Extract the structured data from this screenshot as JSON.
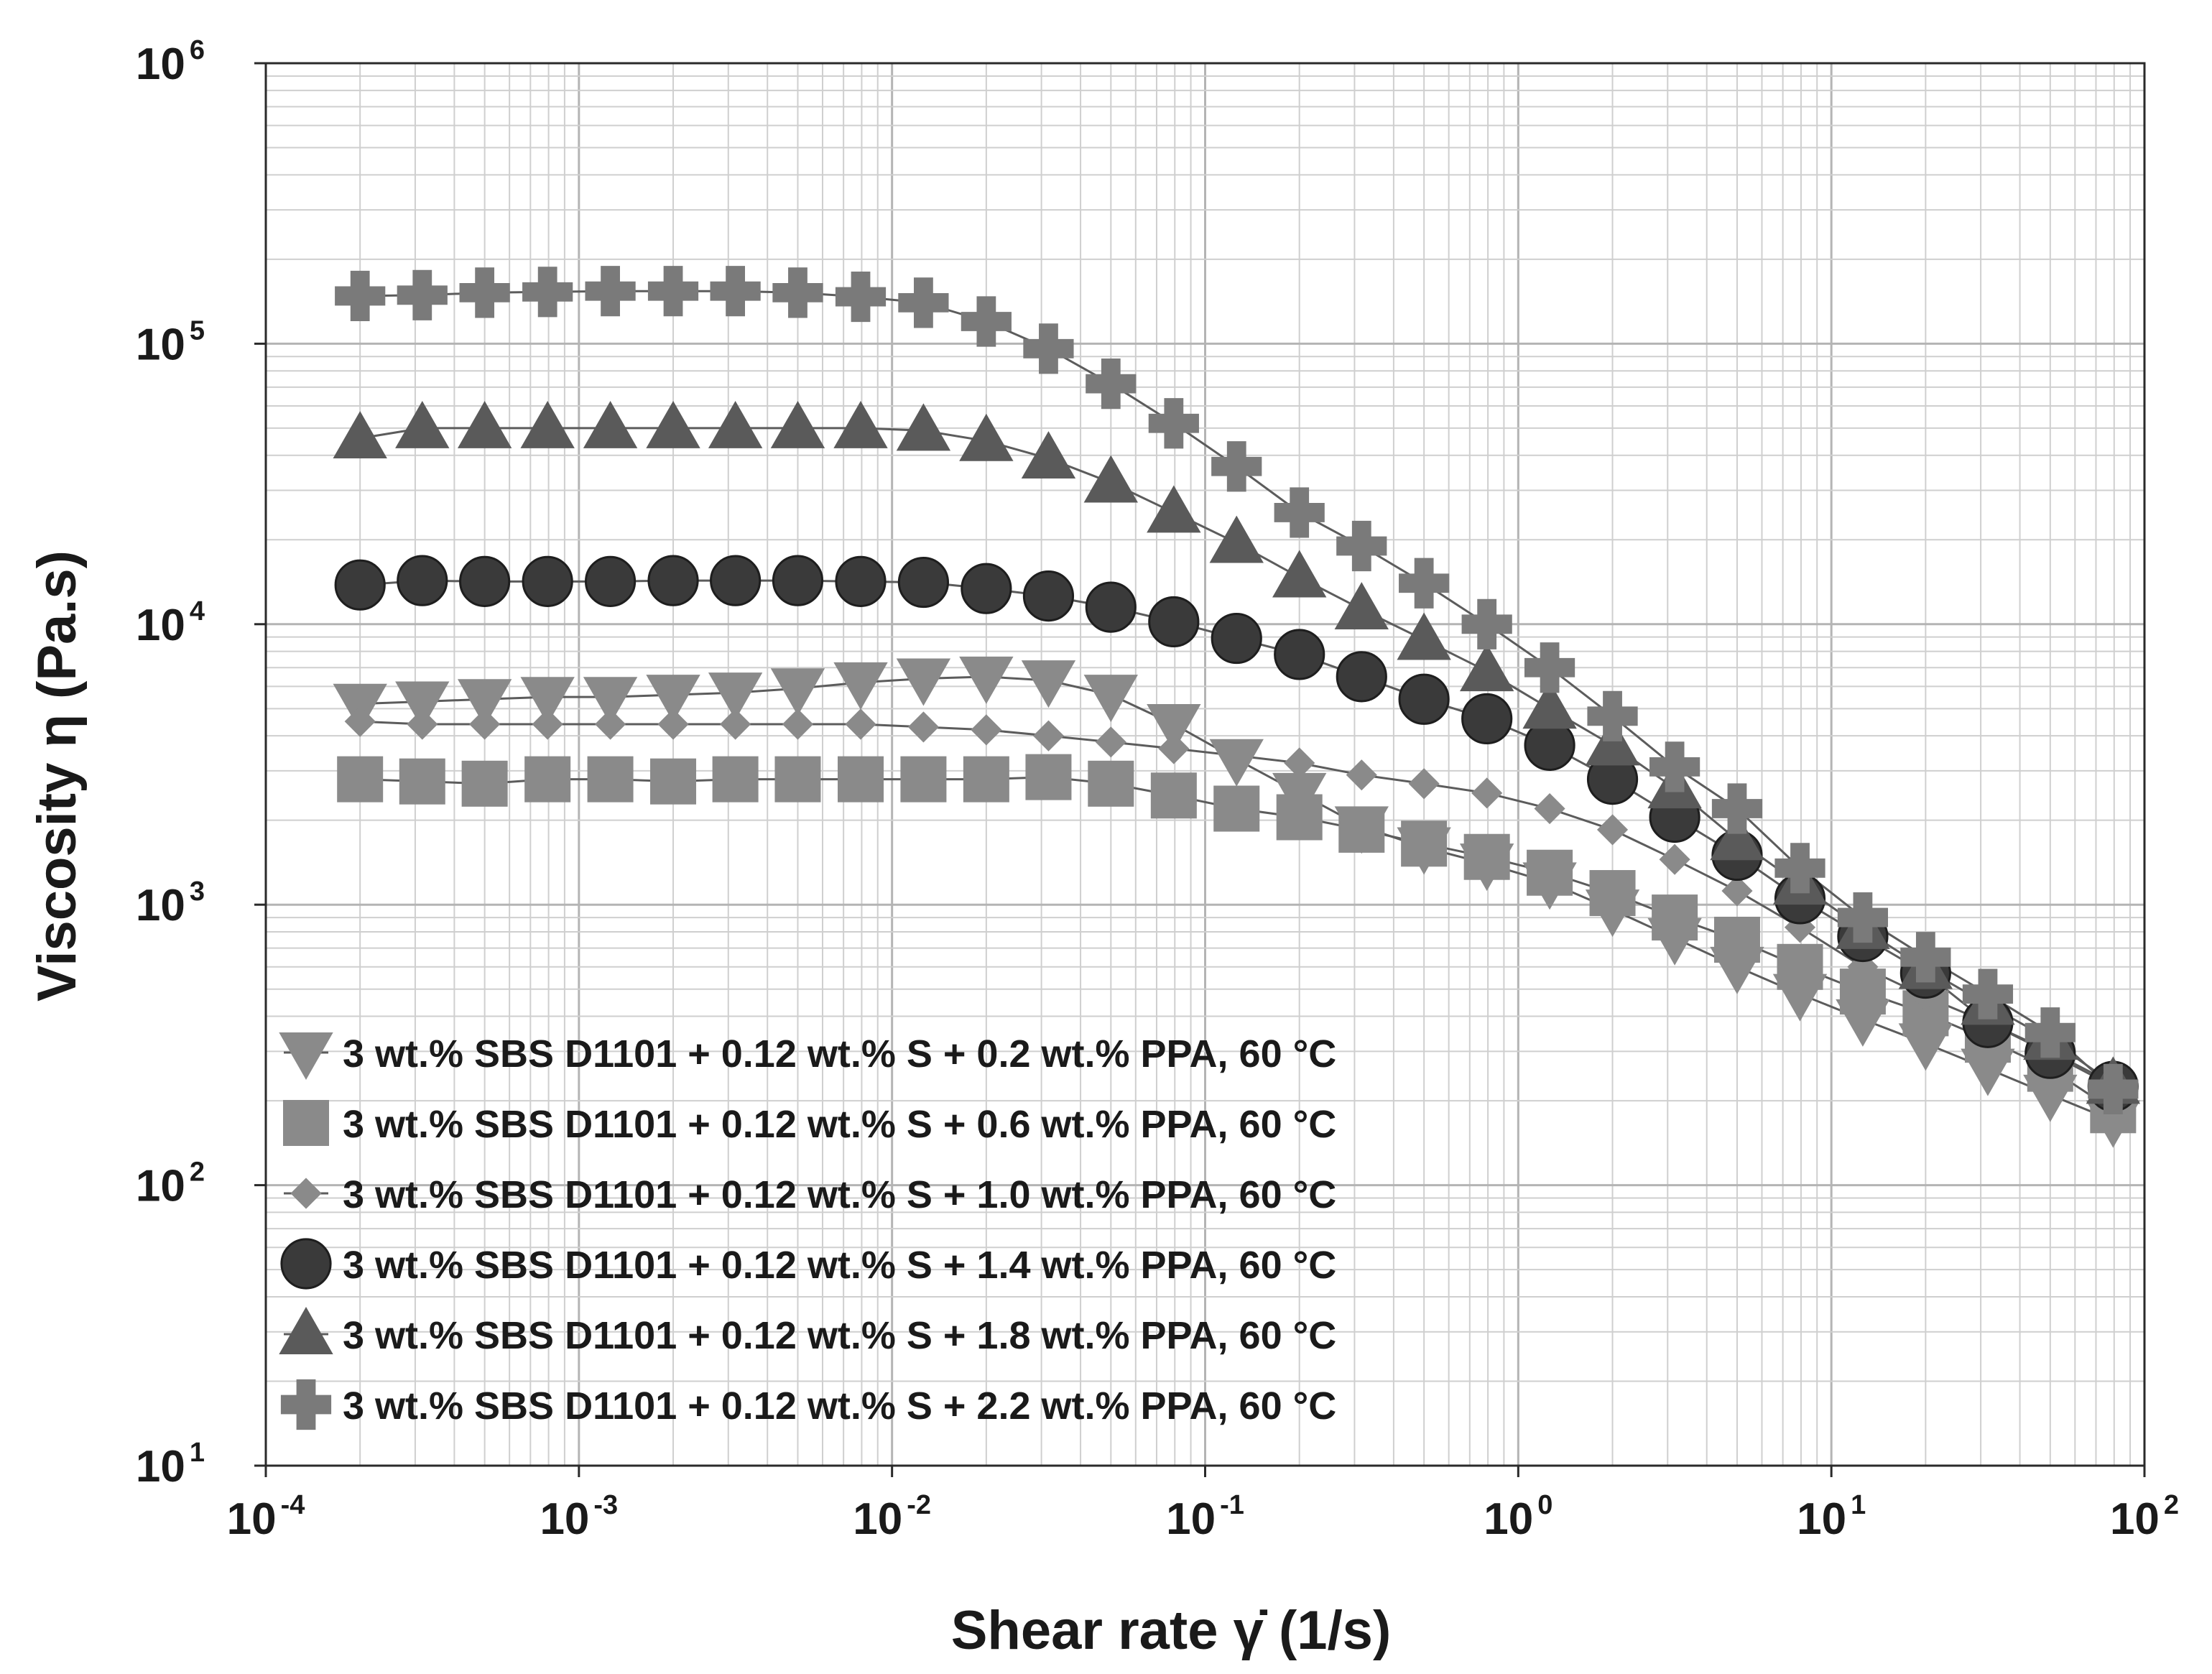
{
  "chart_data": {
    "type": "line",
    "scale": {
      "x": "log",
      "y": "log"
    },
    "xlabel": "Shear rate  γ̇  (1/s)",
    "ylabel": "Viscosity  η  (Pa.s)",
    "xlim": [
      0.0001,
      100
    ],
    "ylim": [
      10,
      1000000
    ],
    "x_ticks": [
      {
        "base": "10",
        "exp": "-4"
      },
      {
        "base": "10",
        "exp": "-3"
      },
      {
        "base": "10",
        "exp": "-2"
      },
      {
        "base": "10",
        "exp": "-1"
      },
      {
        "base": "10",
        "exp": "0"
      },
      {
        "base": "10",
        "exp": "1"
      },
      {
        "base": "10",
        "exp": "2"
      }
    ],
    "y_ticks": [
      {
        "base": "10",
        "exp": "1"
      },
      {
        "base": "10",
        "exp": "2"
      },
      {
        "base": "10",
        "exp": "3"
      },
      {
        "base": "10",
        "exp": "4"
      },
      {
        "base": "10",
        "exp": "5"
      },
      {
        "base": "10",
        "exp": "6"
      }
    ],
    "grid": true,
    "legend_position": "bottom-left",
    "x": [
      0.0002,
      0.000316,
      0.0005,
      0.000794,
      0.00126,
      0.002,
      0.00316,
      0.005,
      0.00794,
      0.0126,
      0.02,
      0.0316,
      0.05,
      0.0794,
      0.126,
      0.2,
      0.316,
      0.5,
      0.794,
      1.26,
      2,
      3.16,
      5,
      7.94,
      12.6,
      20,
      31.6,
      50,
      79.4
    ],
    "series": [
      {
        "name": "3 wt.% SBS D1101 + 0.12 wt.% S + 0.2 wt.% PPA, 60 °C",
        "marker": "triangle-down",
        "color": "#8a8a8a",
        "values": [
          5200,
          5300,
          5400,
          5500,
          5500,
          5600,
          5700,
          5900,
          6200,
          6400,
          6500,
          6300,
          5600,
          4400,
          3300,
          2500,
          1900,
          1600,
          1400,
          1200,
          960,
          760,
          600,
          480,
          390,
          320,
          260,
          210,
          170
        ]
      },
      {
        "name": "3 wt.% SBS D1101 + 0.12 wt.% S + 0.6 wt.% PPA, 60 °C",
        "marker": "square",
        "color": "#8a8a8a",
        "values": [
          2800,
          2750,
          2700,
          2800,
          2800,
          2750,
          2800,
          2800,
          2800,
          2800,
          2800,
          2850,
          2700,
          2450,
          2200,
          2050,
          1850,
          1650,
          1480,
          1300,
          1100,
          900,
          750,
          600,
          490,
          410,
          330,
          260,
          185
        ]
      },
      {
        "name": "3 wt.% SBS D1101 + 0.12 wt.% S + 1.0 wt.% PPA, 60 °C",
        "marker": "diamond",
        "color": "#8a8a8a",
        "values": [
          4500,
          4400,
          4400,
          4400,
          4400,
          4400,
          4400,
          4400,
          4400,
          4300,
          4200,
          4000,
          3800,
          3600,
          3400,
          3200,
          2900,
          2700,
          2500,
          2200,
          1850,
          1450,
          1120,
          830,
          600,
          470,
          380,
          300,
          230
        ]
      },
      {
        "name": "3 wt.% SBS D1101 + 0.12 wt.% S + 1.4 wt.% PPA, 60 °C",
        "marker": "circle",
        "color": "#3a3a3a",
        "values": [
          13800,
          14300,
          14200,
          14200,
          14200,
          14300,
          14300,
          14300,
          14200,
          14100,
          13400,
          12600,
          11500,
          10200,
          8900,
          7800,
          6500,
          5400,
          4600,
          3700,
          2800,
          2050,
          1500,
          1050,
          770,
          570,
          380,
          295,
          225
        ]
      },
      {
        "name": "3 wt.% SBS D1101 + 0.12 wt.% S + 1.8 wt.% PPA, 60 °C",
        "marker": "triangle-up",
        "color": "#5a5a5a",
        "values": [
          46000,
          50000,
          50000,
          50000,
          50000,
          50000,
          50000,
          50000,
          50000,
          49000,
          45000,
          39000,
          32000,
          25000,
          19500,
          14700,
          11300,
          8800,
          6800,
          5000,
          3700,
          2600,
          1700,
          1180,
          820,
          590,
          440,
          330,
          230
        ]
      },
      {
        "name": "3 wt.% SBS D1101 + 0.12 wt.% S + 2.2 wt.% PPA, 60 °C",
        "marker": "cross",
        "color": "#7a7a7a",
        "values": [
          148000,
          149000,
          152000,
          153000,
          154000,
          154000,
          154000,
          152000,
          147000,
          140000,
          120000,
          96000,
          72000,
          52000,
          36500,
          25000,
          19000,
          14000,
          10000,
          7000,
          4700,
          3100,
          2200,
          1350,
          900,
          650,
          480,
          350,
          220
        ]
      }
    ]
  }
}
